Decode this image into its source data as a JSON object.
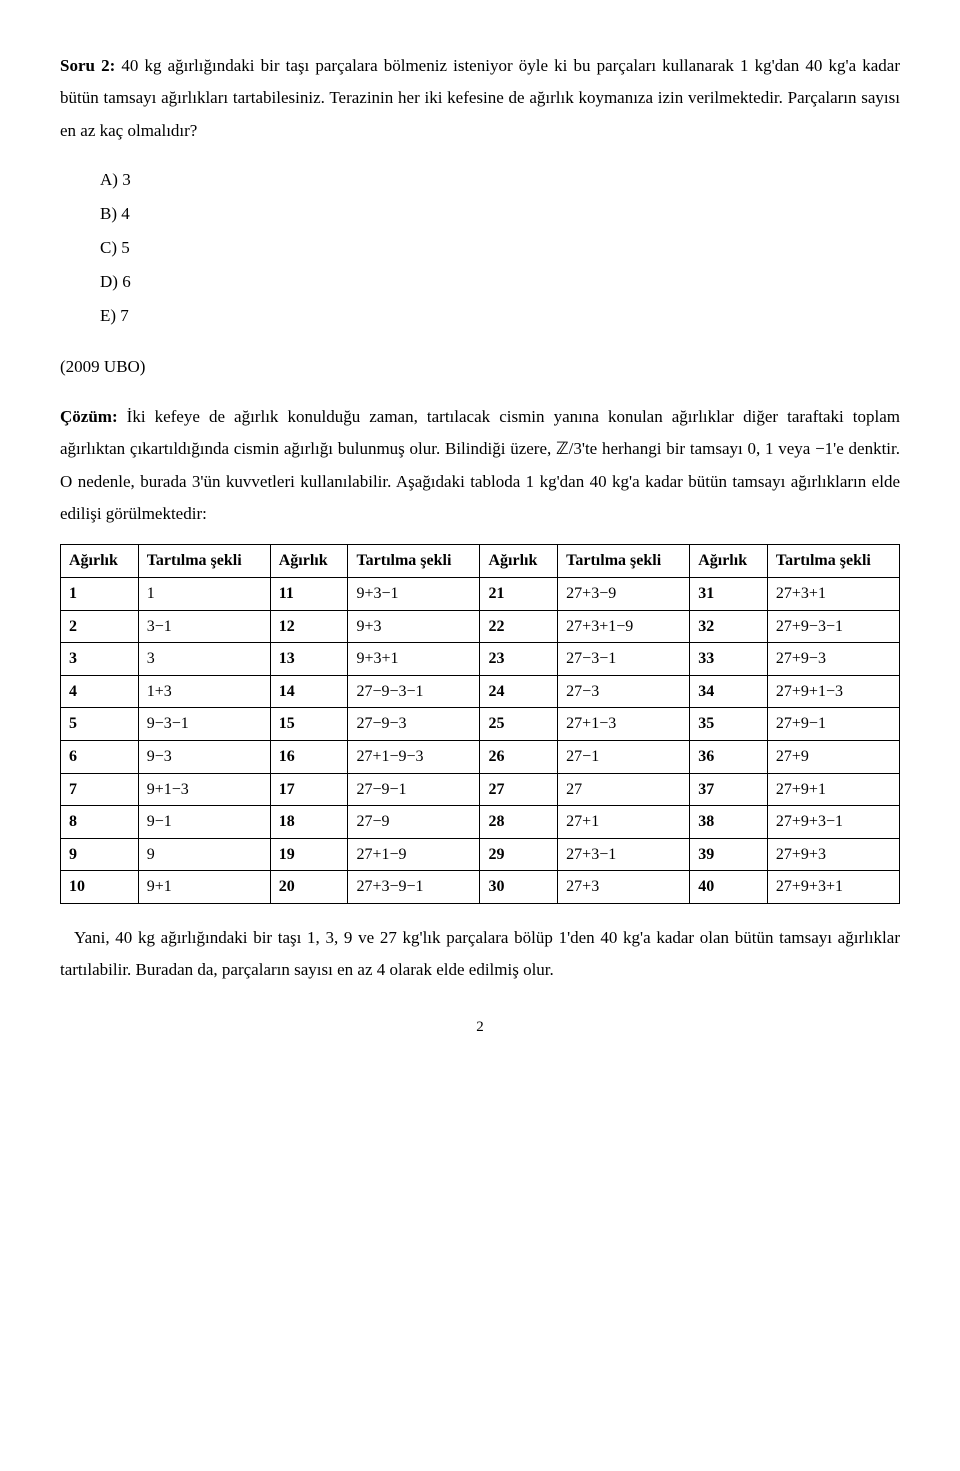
{
  "question": {
    "label": "Soru 2:",
    "text_after_label": " 40 kg ağırlığındaki bir taşı parçalara bölmeniz isteniyor öyle ki bu parçaları kullanarak 1 kg'dan 40 kg'a kadar bütün tamsayı ağırlıkları tartabilesiniz. Terazinin her iki kefesine de ağırlık koymanıza izin verilmektedir. Parçaların sayısı en az kaç olmalıdır?"
  },
  "options": {
    "a": "A)  3",
    "b": "B)  4",
    "c": "C)  5",
    "d": "D)  6",
    "e": "E)  7"
  },
  "source": "(2009 UBO)",
  "solution": {
    "label": "Çözüm:",
    "text1_after_label": " İki kefeye de ağırlık konulduğu zaman, tartılacak cismin yanına konulan ağırlıklar diğer taraftaki toplam ağırlıktan çıkartıldığında cismin ağırlığı bulunmuş olur. Bilindiği üzere, ℤ/3'te herhangi bir tamsayı 0, 1 veya −1'e denktir. O nedenle, burada 3'ün kuvvetleri kullanılabilir. Aşağıdaki tabloda 1 kg'dan 40 kg'a kadar bütün tamsayı ağırlıkların elde edilişi görülmektedir:"
  },
  "table": {
    "headers": {
      "h_weight": "Ağırlık",
      "h_method": "Tartılma şekli"
    },
    "rows": [
      {
        "w1": "1",
        "m1": "1",
        "w2": "11",
        "m2": "9+3−1",
        "w3": "21",
        "m3": "27+3−9",
        "w4": "31",
        "m4": "27+3+1"
      },
      {
        "w1": "2",
        "m1": "3−1",
        "w2": "12",
        "m2": "9+3",
        "w3": "22",
        "m3": "27+3+1−9",
        "w4": "32",
        "m4": "27+9−3−1"
      },
      {
        "w1": "3",
        "m1": "3",
        "w2": "13",
        "m2": "9+3+1",
        "w3": "23",
        "m3": "27−3−1",
        "w4": "33",
        "m4": "27+9−3"
      },
      {
        "w1": "4",
        "m1": "1+3",
        "w2": "14",
        "m2": "27−9−3−1",
        "w3": "24",
        "m3": "27−3",
        "w4": "34",
        "m4": "27+9+1−3"
      },
      {
        "w1": "5",
        "m1": "9−3−1",
        "w2": "15",
        "m2": "27−9−3",
        "w3": "25",
        "m3": "27+1−3",
        "w4": "35",
        "m4": "27+9−1"
      },
      {
        "w1": "6",
        "m1": "9−3",
        "w2": "16",
        "m2": "27+1−9−3",
        "w3": "26",
        "m3": "27−1",
        "w4": "36",
        "m4": "27+9"
      },
      {
        "w1": "7",
        "m1": "9+1−3",
        "w2": "17",
        "m2": "27−9−1",
        "w3": "27",
        "m3": "27",
        "w4": "37",
        "m4": "27+9+1"
      },
      {
        "w1": "8",
        "m1": "9−1",
        "w2": "18",
        "m2": "27−9",
        "w3": "28",
        "m3": "27+1",
        "w4": "38",
        "m4": "27+9+3−1"
      },
      {
        "w1": "9",
        "m1": "9",
        "w2": "19",
        "m2": "27+1−9",
        "w3": "29",
        "m3": "27+3−1",
        "w4": "39",
        "m4": "27+9+3"
      },
      {
        "w1": "10",
        "m1": "9+1",
        "w2": "20",
        "m2": "27+3−9−1",
        "w3": "30",
        "m3": "27+3",
        "w4": "40",
        "m4": "27+9+3+1"
      }
    ]
  },
  "conclusion": "Yani, 40 kg ağırlığındaki bir taşı 1, 3, 9 ve 27 kg'lık parçalara bölüp 1'den 40 kg'a kadar olan bütün tamsayı ağırlıklar tartılabilir. Buradan da, parçaların sayısı en az 4 olarak elde edilmiş olur.",
  "page_number": "2"
}
